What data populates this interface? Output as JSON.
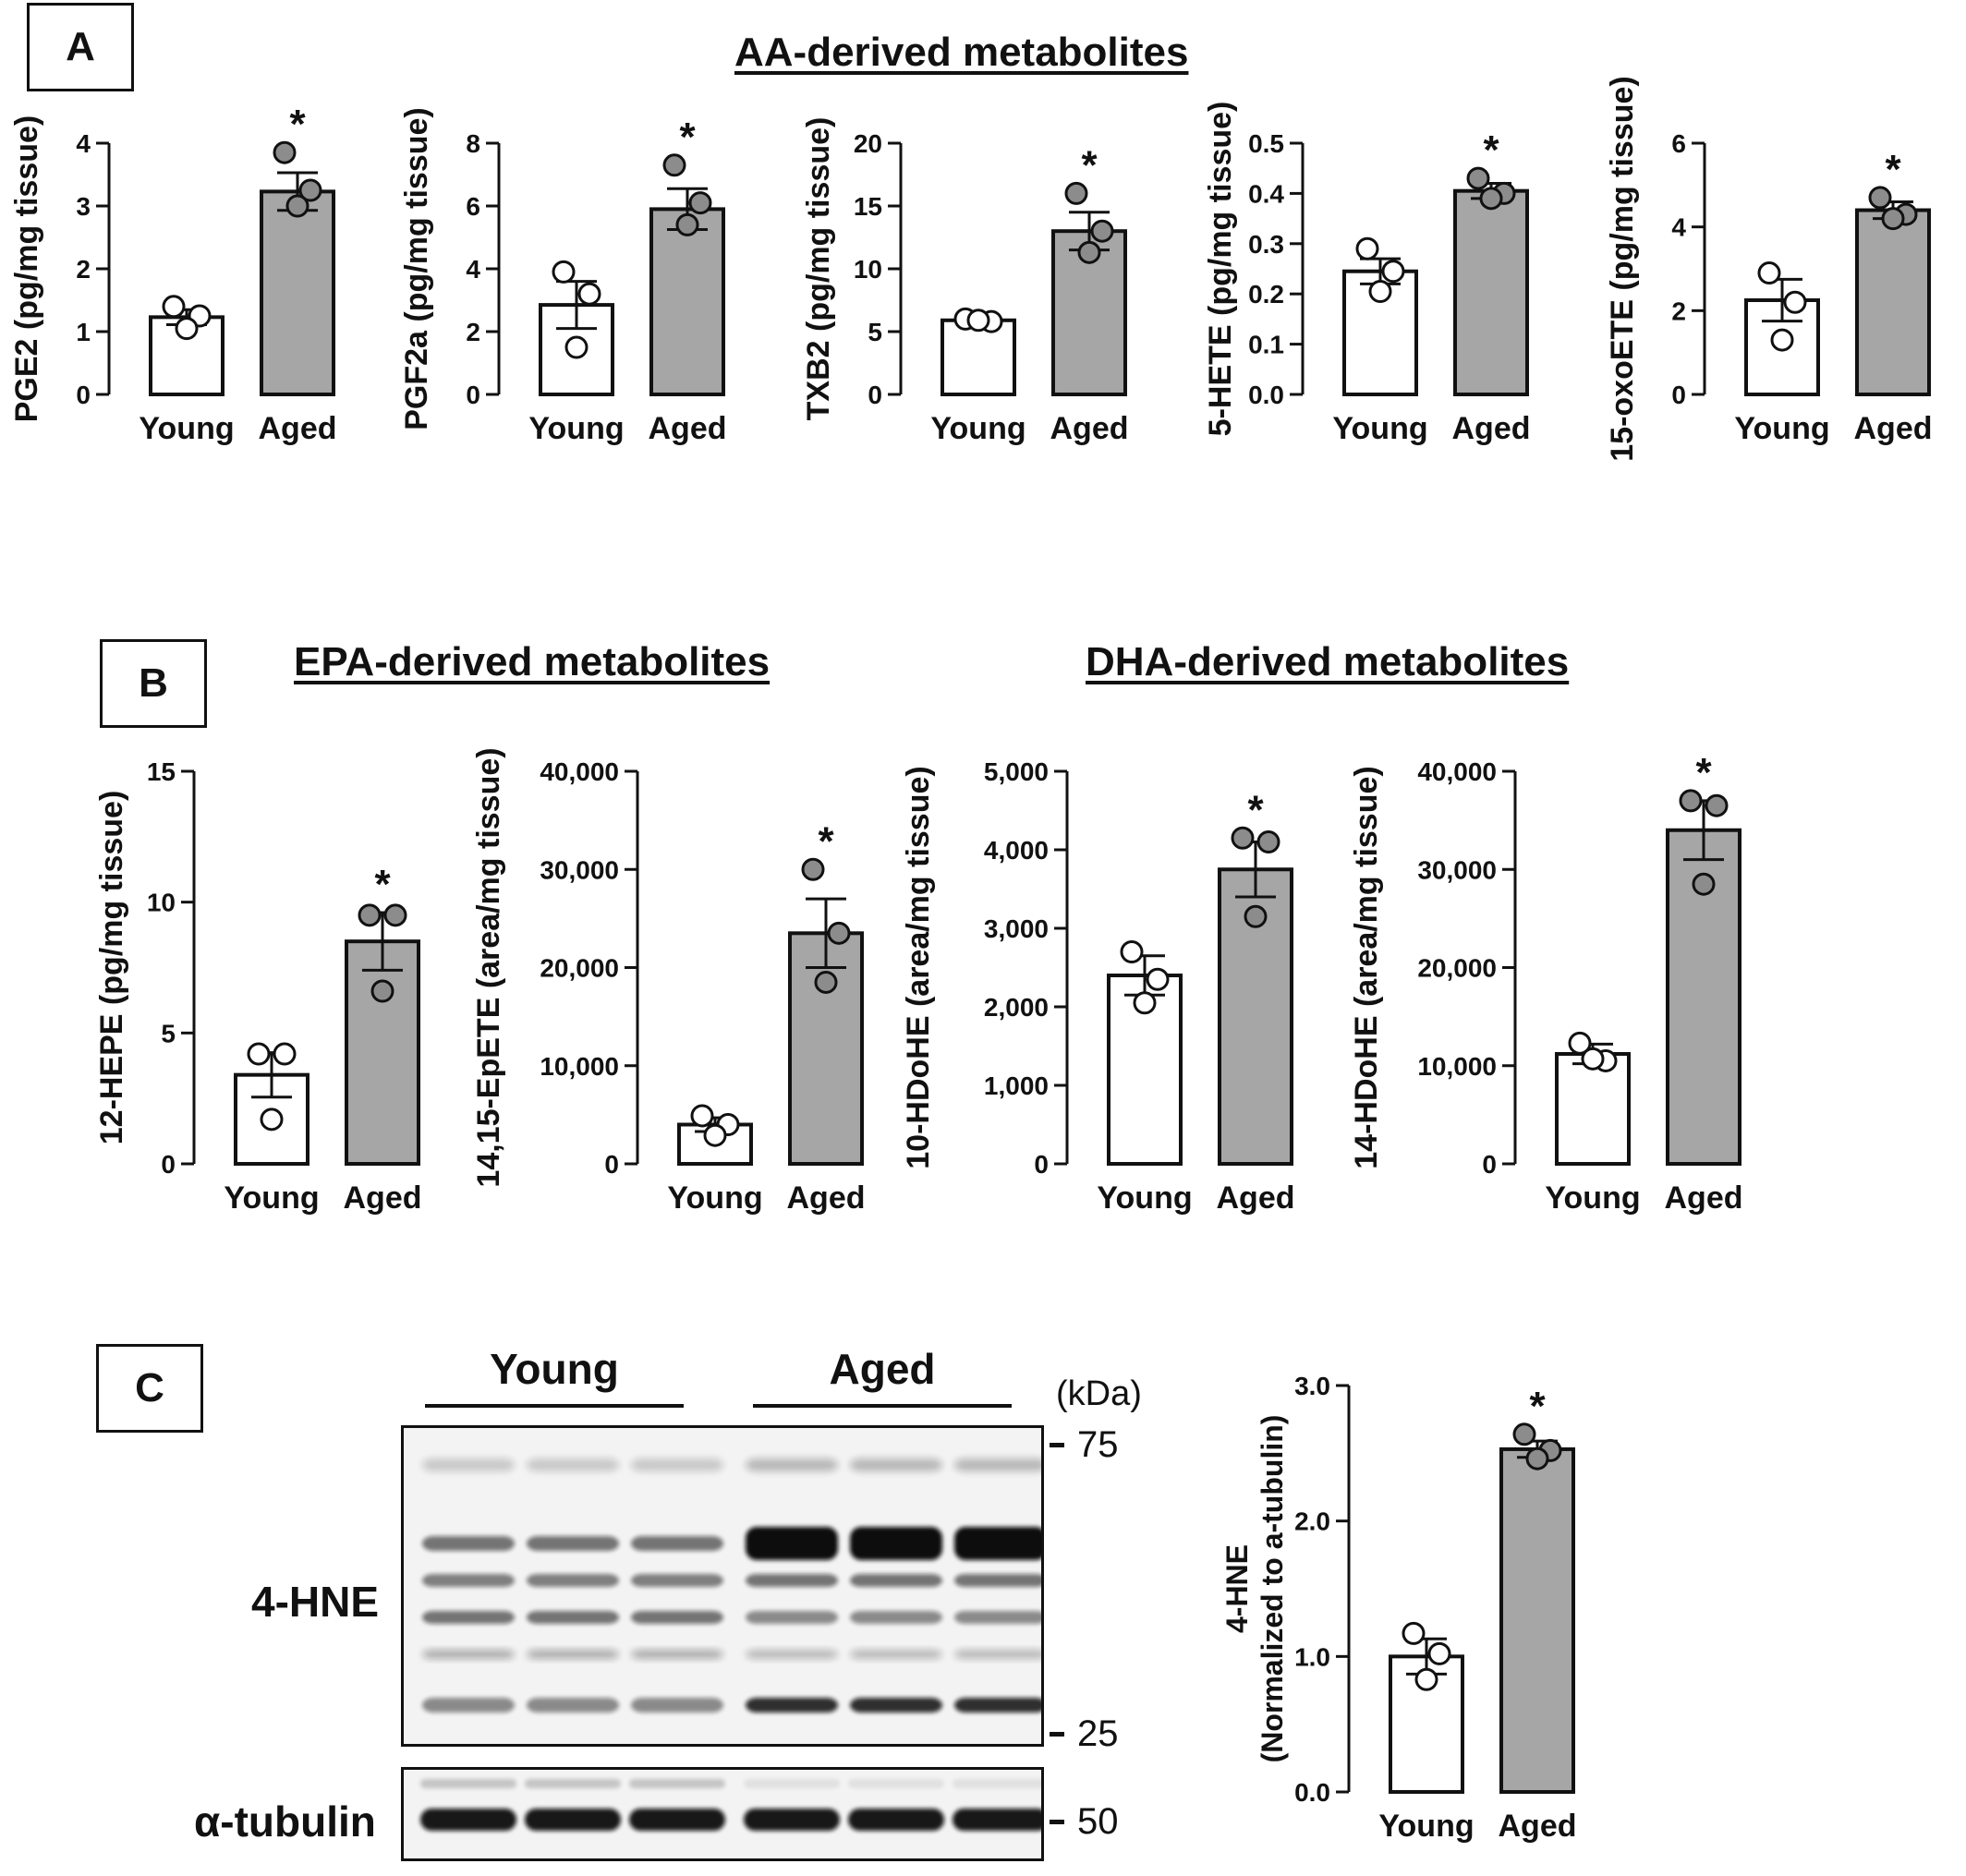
{
  "panels": {
    "a": "A",
    "b": "B",
    "c": "C"
  },
  "titles": {
    "aa": "AA-derived metabolites",
    "epa": "EPA-derived metabolites",
    "dha": "DHA-derived metabolites"
  },
  "colors": {
    "young": "#ffffff",
    "aged": "#a6a6a6",
    "axis": "#111111"
  },
  "chart_data": [
    {
      "id": "pge2",
      "type": "bar",
      "categories": [
        "Young",
        "Aged"
      ],
      "ylabel": "PGE2 (pg/mg tissue)",
      "ylim": [
        0,
        4
      ],
      "yticks": [
        0,
        1,
        2,
        3,
        4
      ],
      "yticklabels": [
        "0",
        "1",
        "2",
        "3",
        "4"
      ],
      "values": [
        1.23,
        3.23
      ],
      "errors": [
        0.12,
        0.3
      ],
      "points": [
        [
          1.4,
          1.25,
          1.05
        ],
        [
          3.85,
          3.25,
          3.0
        ]
      ],
      "annotation": "*"
    },
    {
      "id": "pgf2a",
      "type": "bar",
      "categories": [
        "Young",
        "Aged"
      ],
      "ylabel": "PGF2a (pg/mg tissue)",
      "ylim": [
        0,
        8
      ],
      "yticks": [
        0,
        2,
        4,
        6,
        8
      ],
      "yticklabels": [
        "0",
        "2",
        "4",
        "6",
        "8"
      ],
      "values": [
        2.85,
        5.9
      ],
      "errors": [
        0.75,
        0.65
      ],
      "points": [
        [
          3.9,
          3.2,
          1.5
        ],
        [
          7.3,
          6.1,
          5.4
        ]
      ],
      "annotation": "*"
    },
    {
      "id": "txb2",
      "type": "bar",
      "categories": [
        "Young",
        "Aged"
      ],
      "ylabel": "TXB2 (pg/mg tissue)",
      "ylim": [
        0,
        20
      ],
      "yticks": [
        0,
        5,
        10,
        15,
        20
      ],
      "yticklabels": [
        "0",
        "5",
        "10",
        "15",
        "20"
      ],
      "values": [
        5.9,
        13.0
      ],
      "errors": [
        0.15,
        1.5
      ],
      "points": [
        [
          6.0,
          5.8,
          5.9
        ],
        [
          16.0,
          13.0,
          11.3
        ]
      ],
      "annotation": "*"
    },
    {
      "id": "5hete",
      "type": "bar",
      "categories": [
        "Young",
        "Aged"
      ],
      "ylabel": "5-HETE (pg/mg tissue)",
      "ylim": [
        0,
        0.5
      ],
      "yticks": [
        0,
        0.1,
        0.2,
        0.3,
        0.4,
        0.5
      ],
      "yticklabels": [
        "0.0",
        "0.1",
        "0.2",
        "0.3",
        "0.4",
        "0.5"
      ],
      "values": [
        0.245,
        0.405
      ],
      "errors": [
        0.025,
        0.015
      ],
      "points": [
        [
          0.29,
          0.245,
          0.205
        ],
        [
          0.43,
          0.4,
          0.39
        ]
      ],
      "annotation": "*"
    },
    {
      "id": "15oxoete",
      "type": "bar",
      "categories": [
        "Young",
        "Aged"
      ],
      "ylabel": "15-oxoETE (pg/mg tissue)",
      "ylim": [
        0,
        6
      ],
      "yticks": [
        0,
        2,
        4,
        6
      ],
      "yticklabels": [
        "0",
        "2",
        "4",
        "6"
      ],
      "values": [
        2.25,
        4.4
      ],
      "errors": [
        0.5,
        0.2
      ],
      "points": [
        [
          2.9,
          2.2,
          1.3
        ],
        [
          4.7,
          4.3,
          4.2
        ]
      ],
      "annotation": "*"
    },
    {
      "id": "12hepe",
      "type": "bar",
      "categories": [
        "Young",
        "Aged"
      ],
      "ylabel": "12-HEPE (pg/mg tissue)",
      "ylim": [
        0,
        15
      ],
      "yticks": [
        0,
        5,
        10,
        15
      ],
      "yticklabels": [
        "0",
        "5",
        "10",
        "15"
      ],
      "values": [
        3.4,
        8.5
      ],
      "errors": [
        0.85,
        1.1
      ],
      "points": [
        [
          4.2,
          4.2,
          1.7
        ],
        [
          9.5,
          9.5,
          6.6
        ]
      ],
      "annotation": "*"
    },
    {
      "id": "1415epete",
      "type": "bar",
      "categories": [
        "Young",
        "Aged"
      ],
      "ylabel": "14,15-EpETE (area/mg tissue)",
      "ylim": [
        0,
        40000
      ],
      "yticks": [
        0,
        10000,
        20000,
        30000,
        40000
      ],
      "yticklabels": [
        "0",
        "10,000",
        "20,000",
        "30,000",
        "40,000"
      ],
      "values": [
        4000,
        23500
      ],
      "errors": [
        700,
        3500
      ],
      "points": [
        [
          4900,
          4000,
          2900
        ],
        [
          30000,
          23500,
          18500
        ]
      ],
      "annotation": "*"
    },
    {
      "id": "10hdohe",
      "type": "bar",
      "categories": [
        "Young",
        "Aged"
      ],
      "ylabel": "10-HDoHE (area/mg tissue)",
      "ylim": [
        0,
        5000
      ],
      "yticks": [
        0,
        1000,
        2000,
        3000,
        4000,
        5000
      ],
      "yticklabels": [
        "0",
        "1,000",
        "2,000",
        "3,000",
        "4,000",
        "5,000"
      ],
      "values": [
        2400,
        3750
      ],
      "errors": [
        250,
        350
      ],
      "points": [
        [
          2700,
          2350,
          2050
        ],
        [
          4150,
          4100,
          3150
        ]
      ],
      "annotation": "*"
    },
    {
      "id": "14hdohe",
      "type": "bar",
      "categories": [
        "Young",
        "Aged"
      ],
      "ylabel": "14-HDoHE (area/mg tissue)",
      "ylim": [
        0,
        40000
      ],
      "yticks": [
        0,
        10000,
        20000,
        30000,
        40000
      ],
      "yticklabels": [
        "0",
        "10,000",
        "20,000",
        "30,000",
        "40,000"
      ],
      "values": [
        11200,
        34000
      ],
      "errors": [
        1000,
        3000
      ],
      "points": [
        [
          12300,
          10500,
          10700
        ],
        [
          37000,
          36500,
          28500
        ]
      ],
      "annotation": "*"
    },
    {
      "id": "4hne",
      "type": "bar",
      "categories": [
        "Young",
        "Aged"
      ],
      "ylabel": "4-HNE",
      "ylabel2": "(Normalized to a-tubulin)",
      "ylim": [
        0,
        3
      ],
      "yticks": [
        0,
        1,
        2,
        3
      ],
      "yticklabels": [
        "0.0",
        "1.0",
        "2.0",
        "3.0"
      ],
      "values": [
        1.0,
        2.53
      ],
      "errors": [
        0.13,
        0.06
      ],
      "points": [
        [
          1.17,
          1.02,
          0.83
        ],
        [
          2.64,
          2.52,
          2.46
        ]
      ],
      "annotation": "*"
    }
  ],
  "blot": {
    "groups": [
      "Young",
      "Aged"
    ],
    "unit": "(kDa)",
    "main_label": "4-HNE",
    "tubulin_label": "α-tubulin",
    "markers_main": [
      "75",
      "25"
    ],
    "marker_tubulin": "50"
  }
}
